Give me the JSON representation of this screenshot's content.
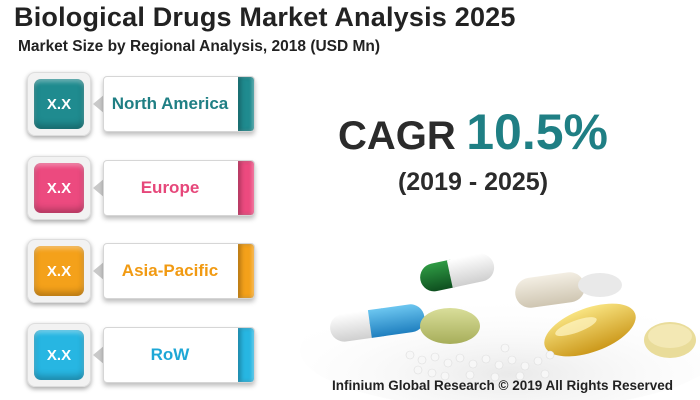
{
  "header": {
    "title": "Biological Drugs Market Analysis 2025",
    "subtitle": "Market Size by Regional Analysis, 2018 (USD Mn)"
  },
  "regions": [
    {
      "name": "North America",
      "value": "X.X",
      "color": "#1f8b8f",
      "text_color": "#1f7f84"
    },
    {
      "name": "Europe",
      "value": "X.X",
      "color": "#ec4a7f",
      "text_color": "#e6477a"
    },
    {
      "name": "Asia-Pacific",
      "value": "X.X",
      "color": "#f4a11a",
      "text_color": "#f19a12"
    },
    {
      "name": "RoW",
      "value": "X.X",
      "color": "#27b6e2",
      "text_color": "#1ea7d6"
    }
  ],
  "cagr": {
    "label": "CAGR",
    "value": "10.5%",
    "period": "(2019 - 2025)",
    "value_color": "#1f7f84"
  },
  "footer": {
    "copyright": "Infinium Global Research © 2019 All Rights Reserved"
  }
}
